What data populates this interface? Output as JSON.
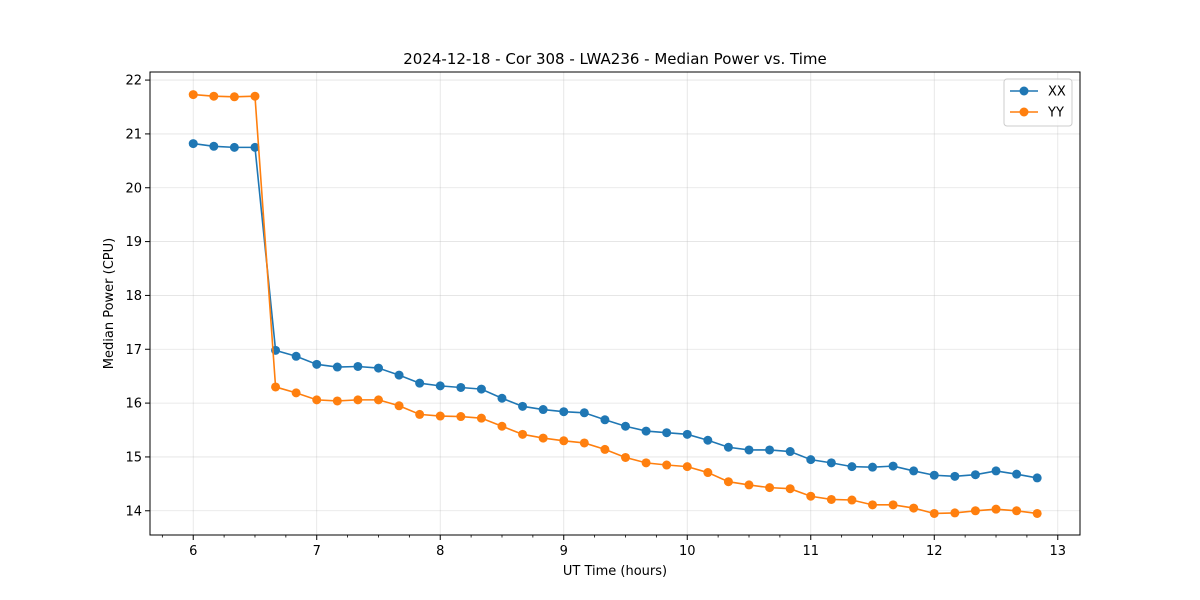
{
  "chart_data": {
    "type": "line",
    "title": "2024-12-18 - Cor 308 - LWA236 - Median Power vs. Time",
    "xlabel": "UT Time (hours)",
    "ylabel": "Median Power (CPU)",
    "xlim": [
      5.65,
      13.18
    ],
    "ylim": [
      13.55,
      22.15
    ],
    "xticks": [
      6,
      7,
      8,
      9,
      10,
      11,
      12,
      13
    ],
    "xtick_labels": [
      "6",
      "7",
      "8",
      "9",
      "10",
      "11",
      "12",
      "13"
    ],
    "yticks": [
      14,
      15,
      16,
      17,
      18,
      19,
      20,
      21,
      22
    ],
    "ytick_labels": [
      "14",
      "15",
      "16",
      "17",
      "18",
      "19",
      "20",
      "21",
      "22"
    ],
    "grid": true,
    "legend_position": "top-right",
    "x": [
      6.0,
      6.1667,
      6.3333,
      6.5,
      6.6667,
      6.8333,
      7.0,
      7.1667,
      7.3333,
      7.5,
      7.6667,
      7.8333,
      8.0,
      8.1667,
      8.3333,
      8.5,
      8.6667,
      8.8333,
      9.0,
      9.1667,
      9.3333,
      9.5,
      9.6667,
      9.8333,
      10.0,
      10.1667,
      10.3333,
      10.5,
      10.6667,
      10.8333,
      11.0,
      11.1667,
      11.3333,
      11.5,
      11.6667,
      11.8333,
      12.0,
      12.1667,
      12.3333,
      12.5,
      12.6667,
      12.8333
    ],
    "series": [
      {
        "name": "XX",
        "color": "#1f77b4",
        "values": [
          20.82,
          20.77,
          20.75,
          20.75,
          16.98,
          16.87,
          16.72,
          16.67,
          16.68,
          16.65,
          16.52,
          16.37,
          16.32,
          16.29,
          16.26,
          16.09,
          15.94,
          15.88,
          15.84,
          15.82,
          15.69,
          15.57,
          15.48,
          15.45,
          15.42,
          15.31,
          15.18,
          15.13,
          15.13,
          15.1,
          14.95,
          14.89,
          14.82,
          14.81,
          14.83,
          14.74,
          14.66,
          14.64,
          14.67,
          14.74,
          14.68,
          14.61
        ]
      },
      {
        "name": "YY",
        "color": "#ff7f0e",
        "values": [
          21.73,
          21.7,
          21.69,
          21.7,
          16.3,
          16.19,
          16.06,
          16.04,
          16.06,
          16.06,
          15.95,
          15.79,
          15.76,
          15.75,
          15.72,
          15.57,
          15.42,
          15.35,
          15.3,
          15.26,
          15.14,
          14.99,
          14.89,
          14.85,
          14.82,
          14.71,
          14.54,
          14.48,
          14.43,
          14.41,
          14.27,
          14.21,
          14.2,
          14.11,
          14.11,
          14.05,
          13.95,
          13.96,
          14.0,
          14.03,
          14.0,
          13.95
        ]
      }
    ]
  }
}
